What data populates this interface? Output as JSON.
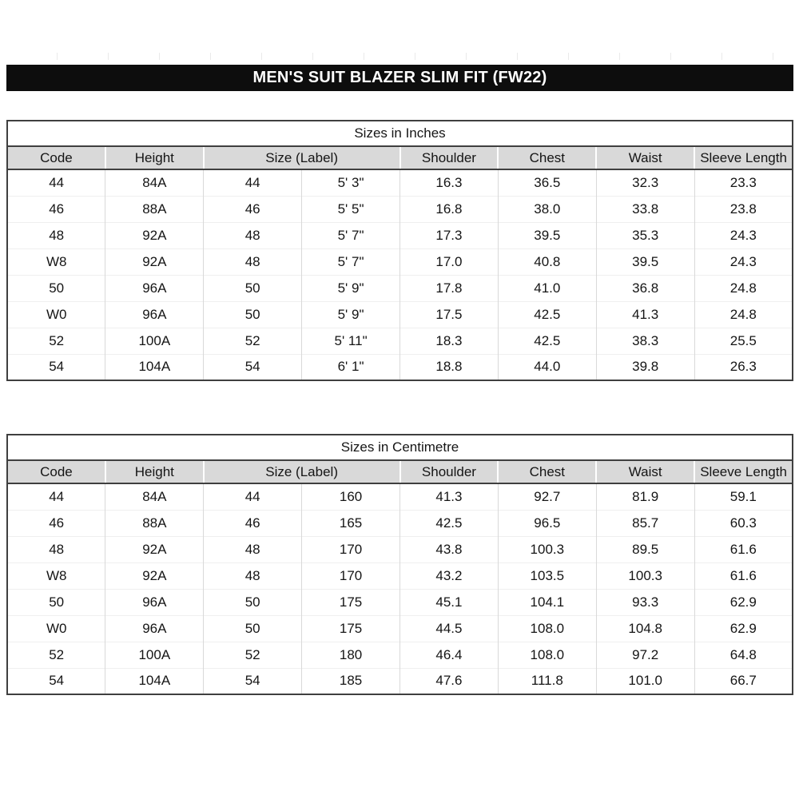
{
  "page_title": "MEN'S SUIT BLAZER SLIM FIT (FW22)",
  "colors": {
    "title_bar_bg": "#0d0d0d",
    "title_bar_text": "#ffffff",
    "header_bg": "#d9d9d9",
    "border_dark": "#3f3f3f",
    "grid_light": "#d9d9d9",
    "row_divider": "#efefef"
  },
  "tables": [
    {
      "title": "Sizes in Inches",
      "columns": [
        "Code",
        "Height",
        "Size (Label)",
        "Shoulder",
        "Chest",
        "Waist",
        "Sleeve Length"
      ],
      "header_spans": [
        1,
        1,
        2,
        1,
        1,
        1,
        1
      ],
      "rows": [
        [
          "44",
          "84A",
          "44",
          "5' 3\"",
          "16.3",
          "36.5",
          "32.3",
          "23.3"
        ],
        [
          "46",
          "88A",
          "46",
          "5' 5\"",
          "16.8",
          "38.0",
          "33.8",
          "23.8"
        ],
        [
          "48",
          "92A",
          "48",
          "5' 7\"",
          "17.3",
          "39.5",
          "35.3",
          "24.3"
        ],
        [
          "W8",
          "92A",
          "48",
          "5' 7\"",
          "17.0",
          "40.8",
          "39.5",
          "24.3"
        ],
        [
          "50",
          "96A",
          "50",
          "5' 9\"",
          "17.8",
          "41.0",
          "36.8",
          "24.8"
        ],
        [
          "W0",
          "96A",
          "50",
          "5' 9\"",
          "17.5",
          "42.5",
          "41.3",
          "24.8"
        ],
        [
          "52",
          "100A",
          "52",
          "5' 11\"",
          "18.3",
          "42.5",
          "38.3",
          "25.5"
        ],
        [
          "54",
          "104A",
          "54",
          "6' 1\"",
          "18.8",
          "44.0",
          "39.8",
          "26.3"
        ]
      ]
    },
    {
      "title": "Sizes in Centimetre",
      "columns": [
        "Code",
        "Height",
        "Size (Label)",
        "Shoulder",
        "Chest",
        "Waist",
        "Sleeve Length"
      ],
      "header_spans": [
        1,
        1,
        2,
        1,
        1,
        1,
        1
      ],
      "rows": [
        [
          "44",
          "84A",
          "44",
          "160",
          "41.3",
          "92.7",
          "81.9",
          "59.1"
        ],
        [
          "46",
          "88A",
          "46",
          "165",
          "42.5",
          "96.5",
          "85.7",
          "60.3"
        ],
        [
          "48",
          "92A",
          "48",
          "170",
          "43.8",
          "100.3",
          "89.5",
          "61.6"
        ],
        [
          "W8",
          "92A",
          "48",
          "170",
          "43.2",
          "103.5",
          "100.3",
          "61.6"
        ],
        [
          "50",
          "96A",
          "50",
          "175",
          "45.1",
          "104.1",
          "93.3",
          "62.9"
        ],
        [
          "W0",
          "96A",
          "50",
          "175",
          "44.5",
          "108.0",
          "104.8",
          "62.9"
        ],
        [
          "52",
          "100A",
          "52",
          "180",
          "46.4",
          "108.0",
          "97.2",
          "64.8"
        ],
        [
          "54",
          "104A",
          "54",
          "185",
          "47.6",
          "111.8",
          "101.0",
          "66.7"
        ]
      ]
    }
  ]
}
